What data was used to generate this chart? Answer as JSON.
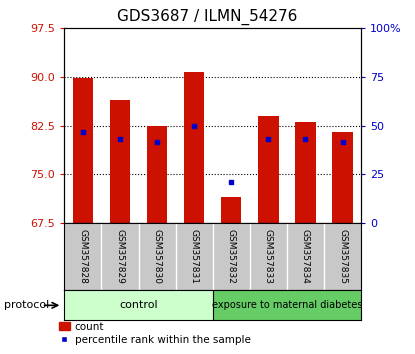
{
  "title": "GDS3687 / ILMN_54276",
  "samples": [
    "GSM357828",
    "GSM357829",
    "GSM357830",
    "GSM357831",
    "GSM357832",
    "GSM357833",
    "GSM357834",
    "GSM357835"
  ],
  "bar_tops": [
    89.85,
    86.5,
    82.5,
    90.8,
    71.5,
    84.0,
    83.0,
    81.5
  ],
  "bar_bottom": 67.5,
  "percentile_values": [
    81.5,
    80.5,
    80.0,
    82.5,
    73.8,
    80.5,
    80.5,
    80.0
  ],
  "bar_color": "#cc1100",
  "percentile_color": "#0000cc",
  "ylim_left": [
    67.5,
    97.5
  ],
  "ylim_right": [
    0,
    100
  ],
  "yticks_left": [
    67.5,
    75.0,
    82.5,
    90.0,
    97.5
  ],
  "yticks_right": [
    0,
    25,
    50,
    75,
    100
  ],
  "ytick_labels_right": [
    "0",
    "25",
    "50",
    "75",
    "100%"
  ],
  "grid_color": "black",
  "grid_linestyle": "dotted",
  "grid_yticks": [
    75.0,
    82.5,
    90.0
  ],
  "bar_width": 0.55,
  "n_control": 4,
  "n_diabetes": 4,
  "control_label": "control",
  "diabetes_label": "exposure to maternal diabetes",
  "control_color": "#ccffcc",
  "diabetes_color": "#66cc66",
  "protocol_label": "protocol",
  "legend_count_label": "count",
  "legend_percentile_label": "percentile rank within the sample",
  "label_band_color": "#c8c8c8",
  "label_divider_color": "#ffffff",
  "tick_label_size": 8,
  "title_fontsize": 11,
  "left_tick_color": "#cc1100",
  "right_tick_color": "#0000cc",
  "sample_label_fontsize": 6.5,
  "protocol_fontsize": 8,
  "band_label_fontsize": 8,
  "legend_fontsize": 7.5,
  "plot_bg_color": "#ffffff",
  "outer_bg_color": "#ffffff"
}
